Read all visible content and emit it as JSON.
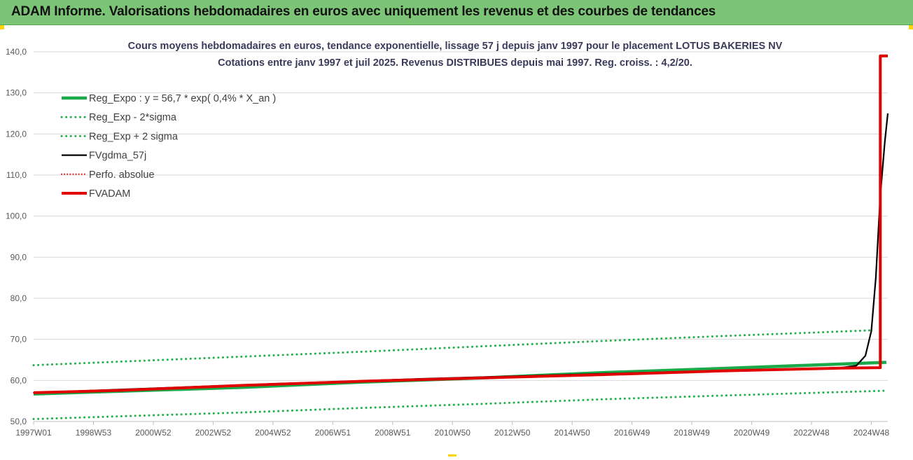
{
  "header": {
    "title": "ADAM Informe. Valorisations hebdomadaires en euros avec uniquement les revenus et des courbes de tendances"
  },
  "colors": {
    "header_bg": "#7cc576",
    "reg_expo": "#1aaa4a",
    "reg_band": "#22b14c",
    "fvgdma": "#000000",
    "perfo": "#e00000",
    "fvadam": "#e00000",
    "grid": "#d9d9d9"
  },
  "chart_data": {
    "type": "line",
    "title": "Cours moyens hebdomadaires en euros, tendance exponentielle, lissage 57 j depuis janv 1997  pour le placement LOTUS BAKERIES NV",
    "subtitle": "Cotations entre janv 1997 et juil 2025. Revenus DISTRIBUES depuis mai 1997. Reg. croiss. : 4,2/20.",
    "ylim": [
      50,
      140
    ],
    "y_ticks": [
      "50,0",
      "60,0",
      "70,0",
      "80,0",
      "90,0",
      "100,0",
      "110,0",
      "120,0",
      "130,0",
      "140,0"
    ],
    "x_range": [
      1997.0,
      2025.55
    ],
    "x_ticks": [
      {
        "label": "1997W01",
        "x": 1997.0
      },
      {
        "label": "1998W53",
        "x": 1999.0
      },
      {
        "label": "2000W52",
        "x": 2001.0
      },
      {
        "label": "2002W52",
        "x": 2003.0
      },
      {
        "label": "2004W52",
        "x": 2005.0
      },
      {
        "label": "2006W51",
        "x": 2007.0
      },
      {
        "label": "2008W51",
        "x": 2009.0
      },
      {
        "label": "2010W50",
        "x": 2011.0
      },
      {
        "label": "2012W50",
        "x": 2013.0
      },
      {
        "label": "2014W50",
        "x": 2015.0
      },
      {
        "label": "2016W49",
        "x": 2017.0
      },
      {
        "label": "2018W49",
        "x": 2019.0
      },
      {
        "label": "2020W49",
        "x": 2021.0
      },
      {
        "label": "2022W48",
        "x": 2023.0
      },
      {
        "label": "2024W48",
        "x": 2025.0
      }
    ],
    "legend_position": "top-left",
    "grid": "horizontal",
    "series": [
      {
        "name": "Reg_Expo : y = 56,7 * exp( 0,4% *  X_an )",
        "style": "solid",
        "points": [
          [
            1997.0,
            56.7
          ],
          [
            2000.0,
            57.4
          ],
          [
            2004.0,
            58.3
          ],
          [
            2008.0,
            59.6
          ],
          [
            2012.0,
            60.6
          ],
          [
            2016.0,
            61.9
          ],
          [
            2020.0,
            62.9
          ],
          [
            2025.5,
            64.4
          ]
        ]
      },
      {
        "name": "Reg_Exp - 2*sigma",
        "style": "dotted",
        "points": [
          [
            1997.0,
            50.6
          ],
          [
            2000.0,
            51.3
          ],
          [
            2004.0,
            52.2
          ],
          [
            2008.0,
            53.3
          ],
          [
            2012.0,
            54.3
          ],
          [
            2016.0,
            55.4
          ],
          [
            2020.0,
            56.3
          ],
          [
            2025.5,
            57.5
          ]
        ]
      },
      {
        "name": "Reg_Exp + 2 sigma",
        "style": "dotted",
        "points": [
          [
            1997.0,
            63.7
          ],
          [
            2000.0,
            64.6
          ],
          [
            2004.0,
            65.8
          ],
          [
            2008.0,
            67.0
          ],
          [
            2012.0,
            68.3
          ],
          [
            2016.0,
            69.6
          ],
          [
            2020.0,
            70.8
          ],
          [
            2025.0,
            72.2
          ]
        ]
      },
      {
        "name": "FVgdma_57j",
        "style": "solid",
        "points": [
          [
            1997.0,
            57.0
          ],
          [
            2004.0,
            58.9
          ],
          [
            2010.0,
            60.4
          ],
          [
            2016.0,
            61.6
          ],
          [
            2024.0,
            63.1
          ],
          [
            2024.5,
            63.6
          ],
          [
            2024.8,
            66.0
          ],
          [
            2025.0,
            72.0
          ],
          [
            2025.15,
            85.0
          ],
          [
            2025.3,
            105.0
          ],
          [
            2025.45,
            118.0
          ],
          [
            2025.55,
            125.0
          ]
        ]
      },
      {
        "name": "Perfo. absolue",
        "style": "dotted",
        "points": [
          [
            1997.0,
            57.0
          ],
          [
            2004.0,
            58.8
          ],
          [
            2010.0,
            60.3
          ],
          [
            2016.0,
            61.4
          ],
          [
            2024.0,
            63.0
          ],
          [
            2025.3,
            63.1
          ],
          [
            2025.3,
            139.0
          ],
          [
            2025.55,
            139.0
          ]
        ]
      },
      {
        "name": "FVADAM",
        "style": "solid",
        "points": [
          [
            1997.0,
            57.0
          ],
          [
            2000.0,
            57.6
          ],
          [
            2004.0,
            58.8
          ],
          [
            2008.0,
            59.8
          ],
          [
            2012.0,
            60.6
          ],
          [
            2016.0,
            61.4
          ],
          [
            2020.0,
            62.3
          ],
          [
            2024.0,
            63.0
          ],
          [
            2025.3,
            63.1
          ],
          [
            2025.3,
            139.0
          ],
          [
            2025.55,
            139.0
          ]
        ]
      }
    ]
  }
}
